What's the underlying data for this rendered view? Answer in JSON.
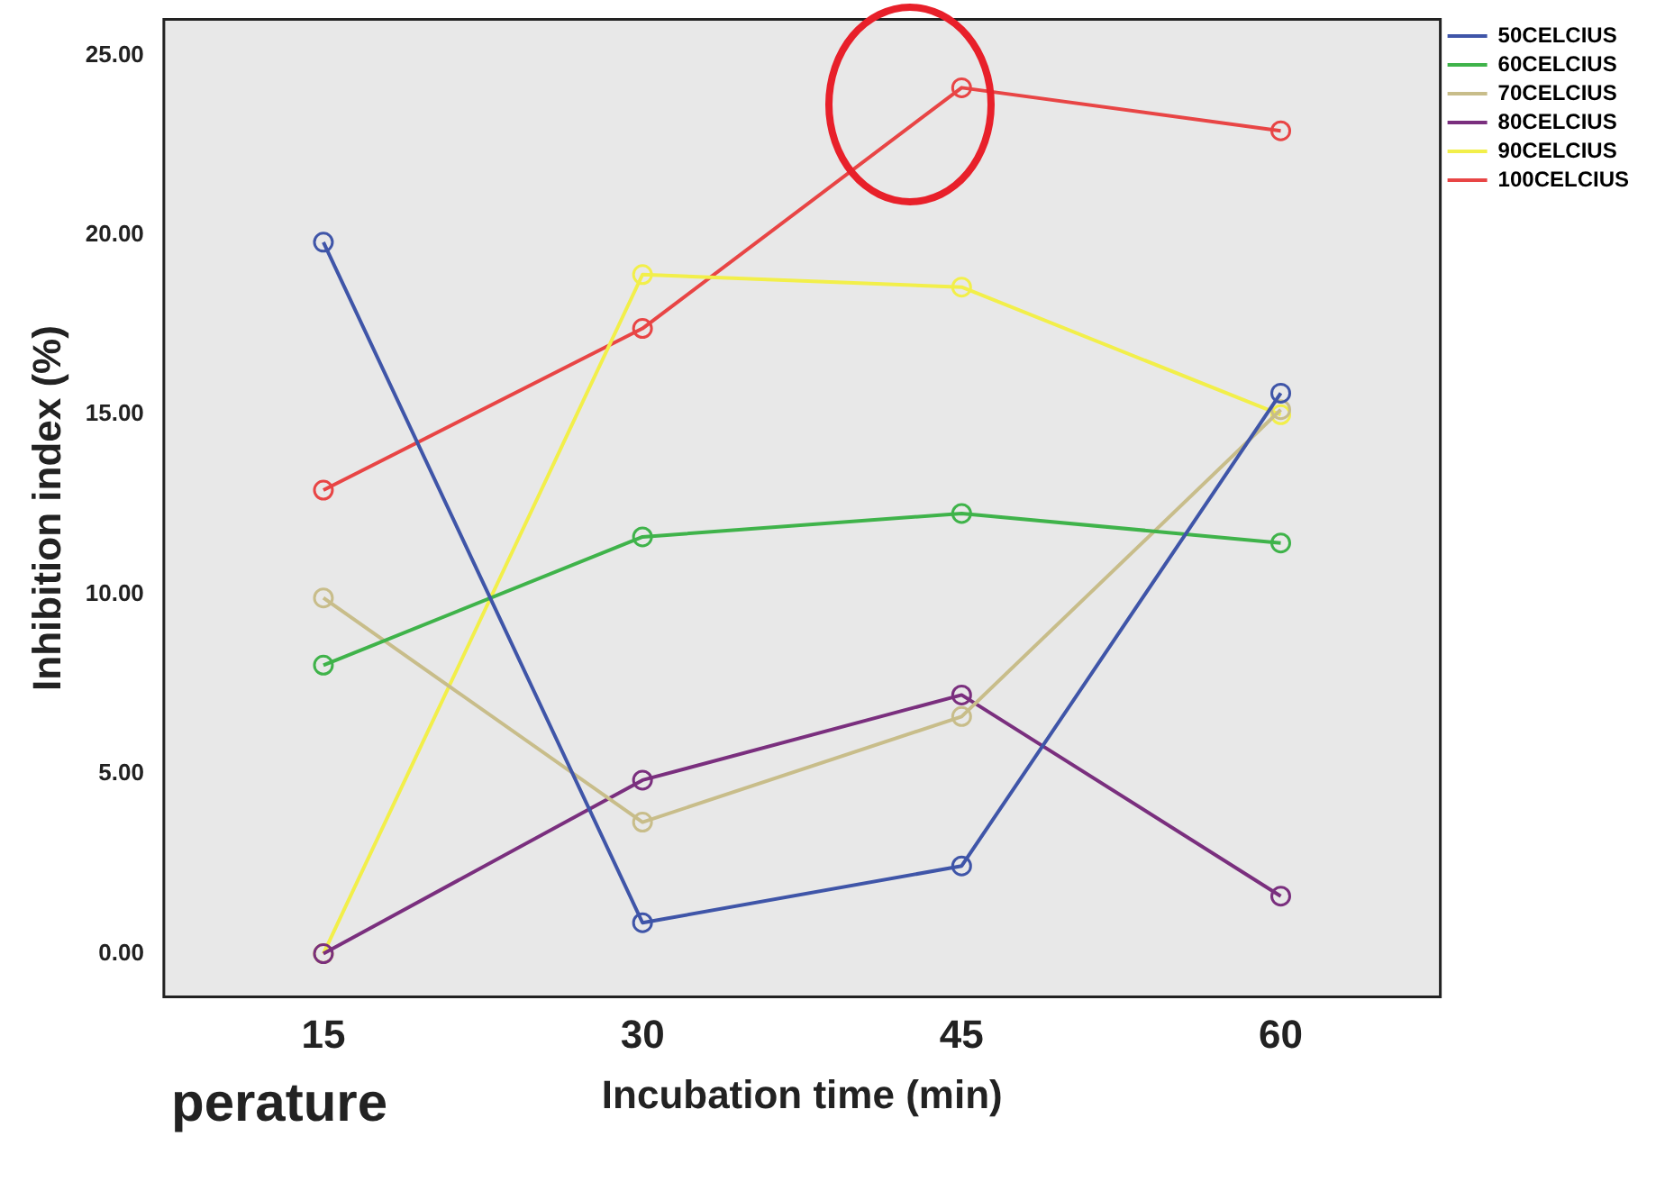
{
  "chart_data": {
    "type": "line",
    "xlabel": "Incubation time (min)",
    "ylabel": "Inhibition index (%)",
    "categories": [
      "15",
      "30",
      "45",
      "60"
    ],
    "ylim": [
      -1.2,
      26
    ],
    "yticks": [
      {
        "value": 0,
        "label": "0.00"
      },
      {
        "value": 5,
        "label": "5.00"
      },
      {
        "value": 10,
        "label": "10.00"
      },
      {
        "value": 15,
        "label": "15.00"
      },
      {
        "value": 20,
        "label": "20.00"
      },
      {
        "value": 25,
        "label": "25.00"
      }
    ],
    "grid": false,
    "legend": "top right",
    "marker": "circle",
    "line_style": "solid",
    "series": [
      {
        "name": "50CELCIUS",
        "color": "#3f55a8",
        "values": [
          19.8,
          0.86,
          2.44,
          15.6
        ]
      },
      {
        "name": "60CELCIUS",
        "color": "#3fb34a",
        "values": [
          8.03,
          11.6,
          12.25,
          11.43
        ]
      },
      {
        "name": "70CELCIUS",
        "color": "#c8bd8a",
        "values": [
          9.9,
          3.66,
          6.6,
          15.14
        ]
      },
      {
        "name": "80CELCIUS",
        "color": "#7a2f7e",
        "values": [
          0,
          4.83,
          7.2,
          1.6
        ]
      },
      {
        "name": "90CELCIUS",
        "color": "#f2ef4a",
        "values": [
          0,
          18.9,
          18.55,
          15.0
        ]
      },
      {
        "name": "100CELCIUS",
        "color": "#e84545",
        "values": [
          12.9,
          17.4,
          24.1,
          22.9
        ]
      }
    ],
    "annotations": [
      "perature"
    ]
  }
}
